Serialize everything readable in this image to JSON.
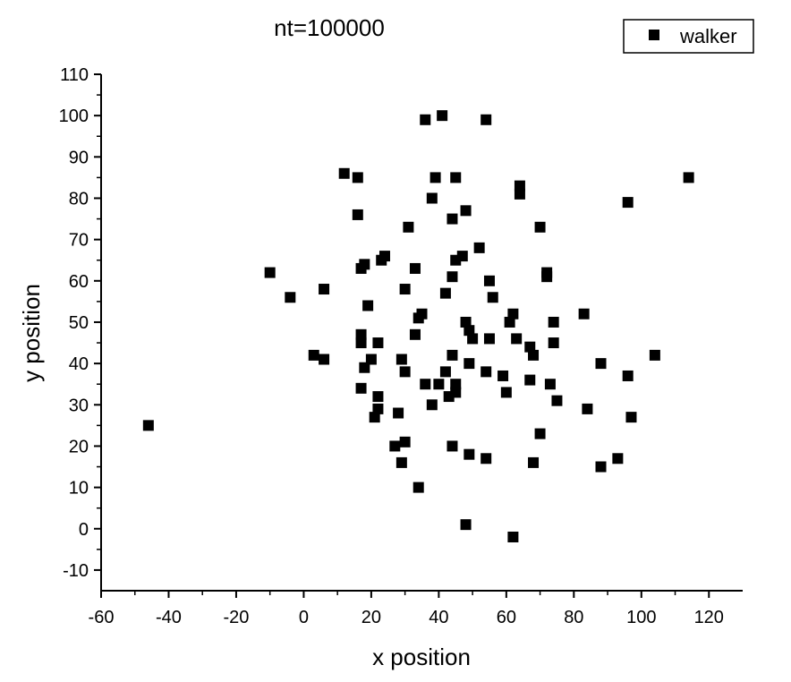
{
  "chart_data": {
    "type": "scatter",
    "title": "nt=100000",
    "xlabel": "x position",
    "ylabel": "y position",
    "xlim": [
      -60,
      130
    ],
    "ylim": [
      -15,
      110
    ],
    "xticks": [
      -60,
      -40,
      -20,
      0,
      20,
      40,
      60,
      80,
      100,
      120
    ],
    "yticks": [
      -10,
      0,
      10,
      20,
      30,
      40,
      50,
      60,
      70,
      80,
      90,
      100,
      110
    ],
    "grid": false,
    "legend_position": "top-right",
    "marker_color": "#000000",
    "series": [
      {
        "name": "walker",
        "marker": "square",
        "points": [
          [
            -46,
            25
          ],
          [
            -10,
            62
          ],
          [
            -4,
            56
          ],
          [
            3,
            42
          ],
          [
            6,
            41
          ],
          [
            6,
            58
          ],
          [
            12,
            86
          ],
          [
            16,
            85
          ],
          [
            16,
            76
          ],
          [
            17,
            63
          ],
          [
            17,
            47
          ],
          [
            17,
            45
          ],
          [
            17,
            34
          ],
          [
            18,
            64
          ],
          [
            18,
            39
          ],
          [
            19,
            54
          ],
          [
            20,
            41
          ],
          [
            21,
            27
          ],
          [
            22,
            45
          ],
          [
            22,
            32
          ],
          [
            22,
            29
          ],
          [
            23,
            65
          ],
          [
            24,
            66
          ],
          [
            27,
            20
          ],
          [
            28,
            28
          ],
          [
            29,
            41
          ],
          [
            29,
            16
          ],
          [
            30,
            58
          ],
          [
            30,
            38
          ],
          [
            30,
            21
          ],
          [
            31,
            73
          ],
          [
            33,
            63
          ],
          [
            33,
            47
          ],
          [
            34,
            51
          ],
          [
            34,
            10
          ],
          [
            35,
            52
          ],
          [
            36,
            99
          ],
          [
            36,
            35
          ],
          [
            38,
            80
          ],
          [
            38,
            30
          ],
          [
            39,
            85
          ],
          [
            40,
            35
          ],
          [
            41,
            100
          ],
          [
            42,
            57
          ],
          [
            42,
            38
          ],
          [
            43,
            32
          ],
          [
            44,
            75
          ],
          [
            44,
            61
          ],
          [
            44,
            42
          ],
          [
            44,
            20
          ],
          [
            45,
            85
          ],
          [
            45,
            65
          ],
          [
            45,
            35
          ],
          [
            45,
            33
          ],
          [
            47,
            66
          ],
          [
            48,
            77
          ],
          [
            48,
            50
          ],
          [
            48,
            1
          ],
          [
            49,
            48
          ],
          [
            49,
            40
          ],
          [
            49,
            18
          ],
          [
            50,
            46
          ],
          [
            52,
            68
          ],
          [
            54,
            99
          ],
          [
            54,
            38
          ],
          [
            54,
            17
          ],
          [
            55,
            60
          ],
          [
            55,
            46
          ],
          [
            56,
            56
          ],
          [
            59,
            37
          ],
          [
            60,
            33
          ],
          [
            61,
            50
          ],
          [
            62,
            52
          ],
          [
            62,
            -2
          ],
          [
            63,
            46
          ],
          [
            64,
            83
          ],
          [
            64,
            81
          ],
          [
            67,
            44
          ],
          [
            67,
            36
          ],
          [
            68,
            42
          ],
          [
            68,
            16
          ],
          [
            70,
            73
          ],
          [
            70,
            23
          ],
          [
            72,
            62
          ],
          [
            72,
            61
          ],
          [
            73,
            35
          ],
          [
            74,
            50
          ],
          [
            74,
            45
          ],
          [
            75,
            31
          ],
          [
            83,
            52
          ],
          [
            84,
            29
          ],
          [
            88,
            40
          ],
          [
            88,
            15
          ],
          [
            93,
            17
          ],
          [
            96,
            79
          ],
          [
            96,
            37
          ],
          [
            97,
            27
          ],
          [
            104,
            42
          ],
          [
            114,
            85
          ]
        ]
      }
    ]
  }
}
